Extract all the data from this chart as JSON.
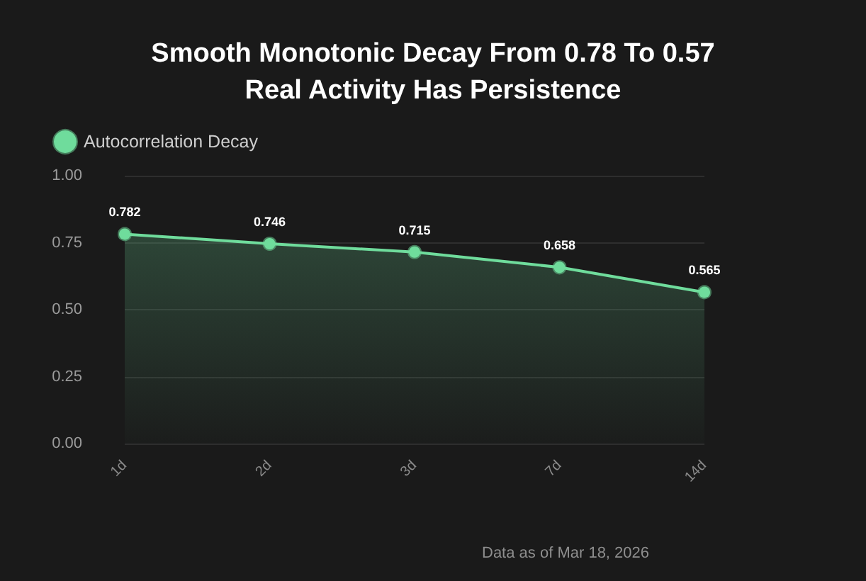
{
  "chart_data": {
    "type": "area",
    "title": "Smooth Monotonic Decay From 0.78 To 0.57",
    "subtitle": "Real Activity Has Persistence",
    "categories": [
      "1d",
      "2d",
      "3d",
      "7d",
      "14d"
    ],
    "series": [
      {
        "name": "Autocorrelation Decay",
        "color": "#6fdc9c",
        "values": [
          0.782,
          0.746,
          0.715,
          0.658,
          0.565
        ]
      }
    ],
    "ylim": [
      0,
      1
    ],
    "yticks": [
      {
        "value": 0,
        "label": "0.00"
      },
      {
        "value": 0.25,
        "label": "0.25"
      },
      {
        "value": 0.5,
        "label": "0.50"
      },
      {
        "value": 0.75,
        "label": "0.75"
      },
      {
        "value": 1,
        "label": "1.00"
      }
    ],
    "grid": "y",
    "legend": "top left",
    "marker": "circle",
    "data_labels": true,
    "annotations": [
      "Data as of Mar 18, 2026"
    ]
  }
}
